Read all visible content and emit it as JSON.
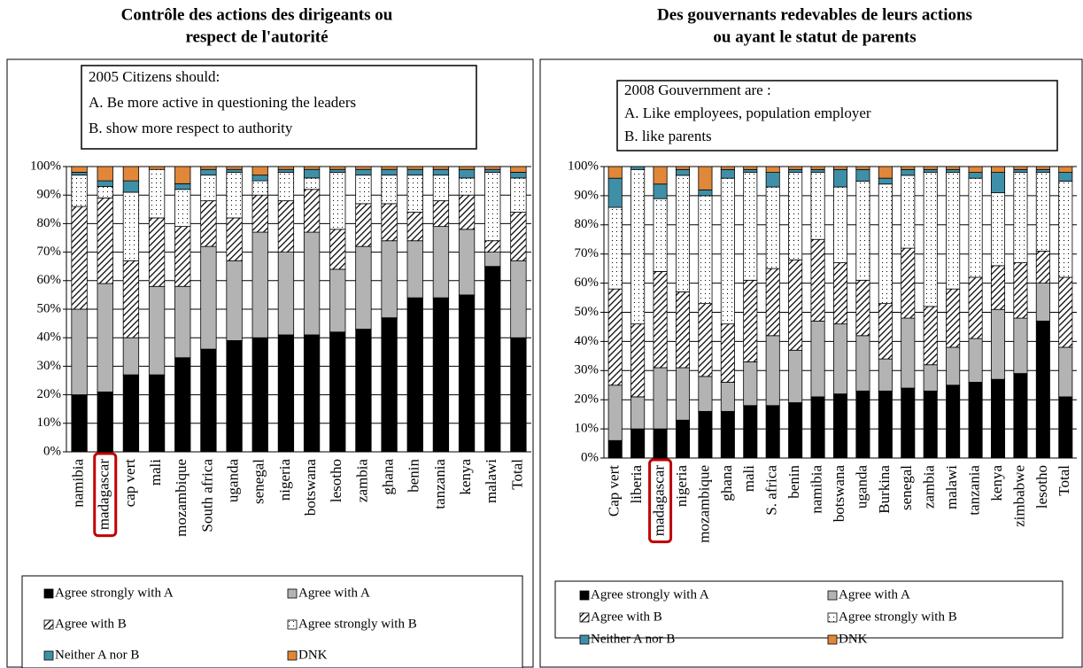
{
  "chart_data": [
    {
      "type": "stacked_bar",
      "title": [
        "Contrôle des actions des dirigeants ou",
        "respect de l'autorité"
      ],
      "annotation": [
        "2005   Citizens should:",
        "A. Be more active in questioning the leaders",
        "B. show more respect to authority"
      ],
      "categories": [
        "namibia",
        "madagascar",
        "cap vert",
        "mali",
        "mozambique",
        "South africa",
        "uganda",
        "senegal",
        "nigeria",
        "botswana",
        "lesotho",
        "zambia",
        "ghana",
        "benin",
        "tanzania",
        "kenya",
        "malawi",
        "Total"
      ],
      "highlight_index": 1,
      "ylim": [
        0,
        100
      ],
      "yticks": [
        {
          "value": 0,
          "label": "0%"
        },
        {
          "value": 10,
          "label": "10%"
        },
        {
          "value": 20,
          "label": "20%"
        },
        {
          "value": 30,
          "label": "30%"
        },
        {
          "value": 40,
          "label": "40%"
        },
        {
          "value": 50,
          "label": "50%"
        },
        {
          "value": 60,
          "label": "60%"
        },
        {
          "value": 70,
          "label": "70%"
        },
        {
          "value": 80,
          "label": "80%"
        },
        {
          "value": 90,
          "label": "90%"
        },
        {
          "value": 100,
          "label": "100%"
        }
      ],
      "series": [
        {
          "name": "Agree strongly with A",
          "color": "#000000",
          "values": [
            20,
            21,
            27,
            27,
            33,
            36,
            39,
            40,
            41,
            41,
            42,
            43,
            47,
            54,
            54,
            55,
            65,
            40
          ]
        },
        {
          "name": "Agree with A",
          "color": "#b3b3b3",
          "values": [
            30,
            38,
            13,
            31,
            25,
            36,
            28,
            37,
            29,
            36,
            22,
            29,
            27,
            20,
            25,
            23,
            5,
            27
          ]
        },
        {
          "name": "Agree with B",
          "color": "#ffffff",
          "pattern": "hatch",
          "values": [
            36,
            30,
            27,
            24,
            21,
            16,
            15,
            13,
            18,
            15,
            14,
            15,
            13,
            10,
            9,
            12,
            4,
            17
          ]
        },
        {
          "name": "Agree strongly with B",
          "color": "#ffffff",
          "pattern": "dots",
          "values": [
            11,
            4,
            24,
            17,
            13,
            9,
            16,
            5,
            10,
            4,
            20,
            10,
            10,
            13,
            9,
            6,
            24,
            12
          ]
        },
        {
          "name": "Neither A nor B",
          "color": "#3f8fa8",
          "values": [
            1,
            2,
            4,
            0,
            2,
            2,
            1,
            2,
            1,
            3,
            1,
            2,
            2,
            2,
            2,
            3,
            1,
            2
          ]
        },
        {
          "name": "DNK",
          "color": "#e0873a",
          "values": [
            2,
            5,
            5,
            1,
            6,
            1,
            1,
            3,
            1,
            1,
            1,
            1,
            1,
            1,
            1,
            1,
            1,
            2
          ]
        }
      ]
    },
    {
      "type": "stacked_bar",
      "title": [
        "Des gouvernants redevables de leurs actions",
        "ou ayant le statut de parents"
      ],
      "annotation": [
        "2008   Gouvernment are :",
        "A. Like employees, population employer",
        "B. like parents"
      ],
      "categories": [
        "Cap vert",
        "liberia",
        "madagascar",
        "nigeria",
        "mozambique",
        "ghana",
        "mali",
        "S. africa",
        "benin",
        "namibia",
        "botswana",
        "uganda",
        "Burkina",
        "senegal",
        "zambia",
        "malawi",
        "tanzania",
        "kenya",
        "zimbabwe",
        "lesotho",
        "Total"
      ],
      "highlight_index": 2,
      "ylim": [
        0,
        100
      ],
      "yticks": [
        {
          "value": 0,
          "label": "0%"
        },
        {
          "value": 10,
          "label": "10%"
        },
        {
          "value": 20,
          "label": "20%"
        },
        {
          "value": 30,
          "label": "30%"
        },
        {
          "value": 40,
          "label": "40%"
        },
        {
          "value": 50,
          "label": "50%"
        },
        {
          "value": 60,
          "label": "60%"
        },
        {
          "value": 70,
          "label": "70%"
        },
        {
          "value": 80,
          "label": "80%"
        },
        {
          "value": 90,
          "label": "90%"
        },
        {
          "value": 100,
          "label": "100%"
        }
      ],
      "series": [
        {
          "name": "Agree strongly with A",
          "color": "#000000",
          "values": [
            6,
            10,
            10,
            13,
            16,
            16,
            18,
            18,
            19,
            21,
            22,
            23,
            23,
            24,
            23,
            25,
            26,
            27,
            29,
            47,
            21
          ]
        },
        {
          "name": "Agree with A",
          "color": "#b3b3b3",
          "values": [
            19,
            11,
            21,
            18,
            12,
            10,
            15,
            24,
            18,
            26,
            24,
            19,
            11,
            24,
            9,
            13,
            15,
            24,
            19,
            13,
            17
          ]
        },
        {
          "name": "Agree with B",
          "color": "#ffffff",
          "pattern": "hatch",
          "values": [
            33,
            25,
            33,
            26,
            25,
            20,
            28,
            23,
            31,
            28,
            21,
            19,
            19,
            24,
            20,
            20,
            21,
            15,
            19,
            11,
            24
          ]
        },
        {
          "name": "Agree strongly with B",
          "color": "#ffffff",
          "pattern": "dots",
          "values": [
            28,
            53,
            25,
            40,
            37,
            50,
            37,
            28,
            30,
            23,
            26,
            34,
            41,
            25,
            46,
            40,
            34,
            25,
            31,
            27,
            33
          ]
        },
        {
          "name": "Neither A nor B",
          "color": "#3f8fa8",
          "values": [
            10,
            1,
            5,
            2,
            2,
            3,
            1,
            5,
            1,
            1,
            6,
            4,
            2,
            2,
            1,
            1,
            2,
            7,
            1,
            1,
            3
          ]
        },
        {
          "name": "DNK",
          "color": "#e0873a",
          "values": [
            4,
            0,
            6,
            1,
            8,
            1,
            1,
            2,
            1,
            1,
            1,
            1,
            4,
            1,
            1,
            1,
            2,
            2,
            1,
            1,
            2
          ]
        }
      ]
    }
  ]
}
